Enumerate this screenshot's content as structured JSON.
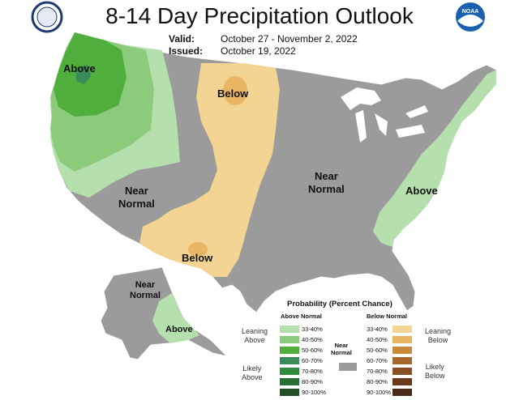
{
  "title": "8-14 Day Precipitation Outlook",
  "valid_label": "Valid:",
  "valid_value": "October 27 - November 2, 2022",
  "issued_label": "Issued:",
  "issued_value": "October 19, 2022",
  "logos": {
    "left": "Department of Commerce seal",
    "right": "NOAA logo",
    "noaa_text": "NOAA"
  },
  "map_labels": {
    "above_nw": "Above",
    "below_n": "Below",
    "near_normal_w_1": "Near",
    "near_normal_w_2": "Normal",
    "near_normal_c_1": "Near",
    "near_normal_c_2": "Normal",
    "above_se": "Above",
    "below_s": "Below",
    "near_normal_ak_1": "Near",
    "near_normal_ak_2": "Normal",
    "above_ak": "Above"
  },
  "legend": {
    "title": "Probability (Percent Chance)",
    "above_header": "Above Normal",
    "below_header": "Below Normal",
    "near_normal_1": "Near",
    "near_normal_2": "Normal",
    "leaning_above_1": "Leaning",
    "leaning_above_2": "Above",
    "likely_above_1": "Likely",
    "likely_above_2": "Above",
    "leaning_below_1": "Leaning",
    "leaning_below_2": "Below",
    "likely_below_1": "Likely",
    "likely_below_2": "Below",
    "above_bins": [
      "33-40%",
      "40-50%",
      "50-60%",
      "60-70%",
      "70-80%",
      "80-90%",
      "90-100%"
    ],
    "below_bins": [
      "33-40%",
      "40-50%",
      "50-60%",
      "60-70%",
      "70-80%",
      "80-90%",
      "90-100%"
    ],
    "above_colors": [
      "#b6dfae",
      "#8ccb7c",
      "#4fae3c",
      "#3a8a5a",
      "#2f8a3e",
      "#2b6e34",
      "#234f28"
    ],
    "below_colors": [
      "#f3d493",
      "#e8b565",
      "#c98a3a",
      "#a9682b",
      "#8a4e24",
      "#6b3a1c",
      "#4a2a18"
    ],
    "near_normal_color": "#9b9b9b"
  }
}
